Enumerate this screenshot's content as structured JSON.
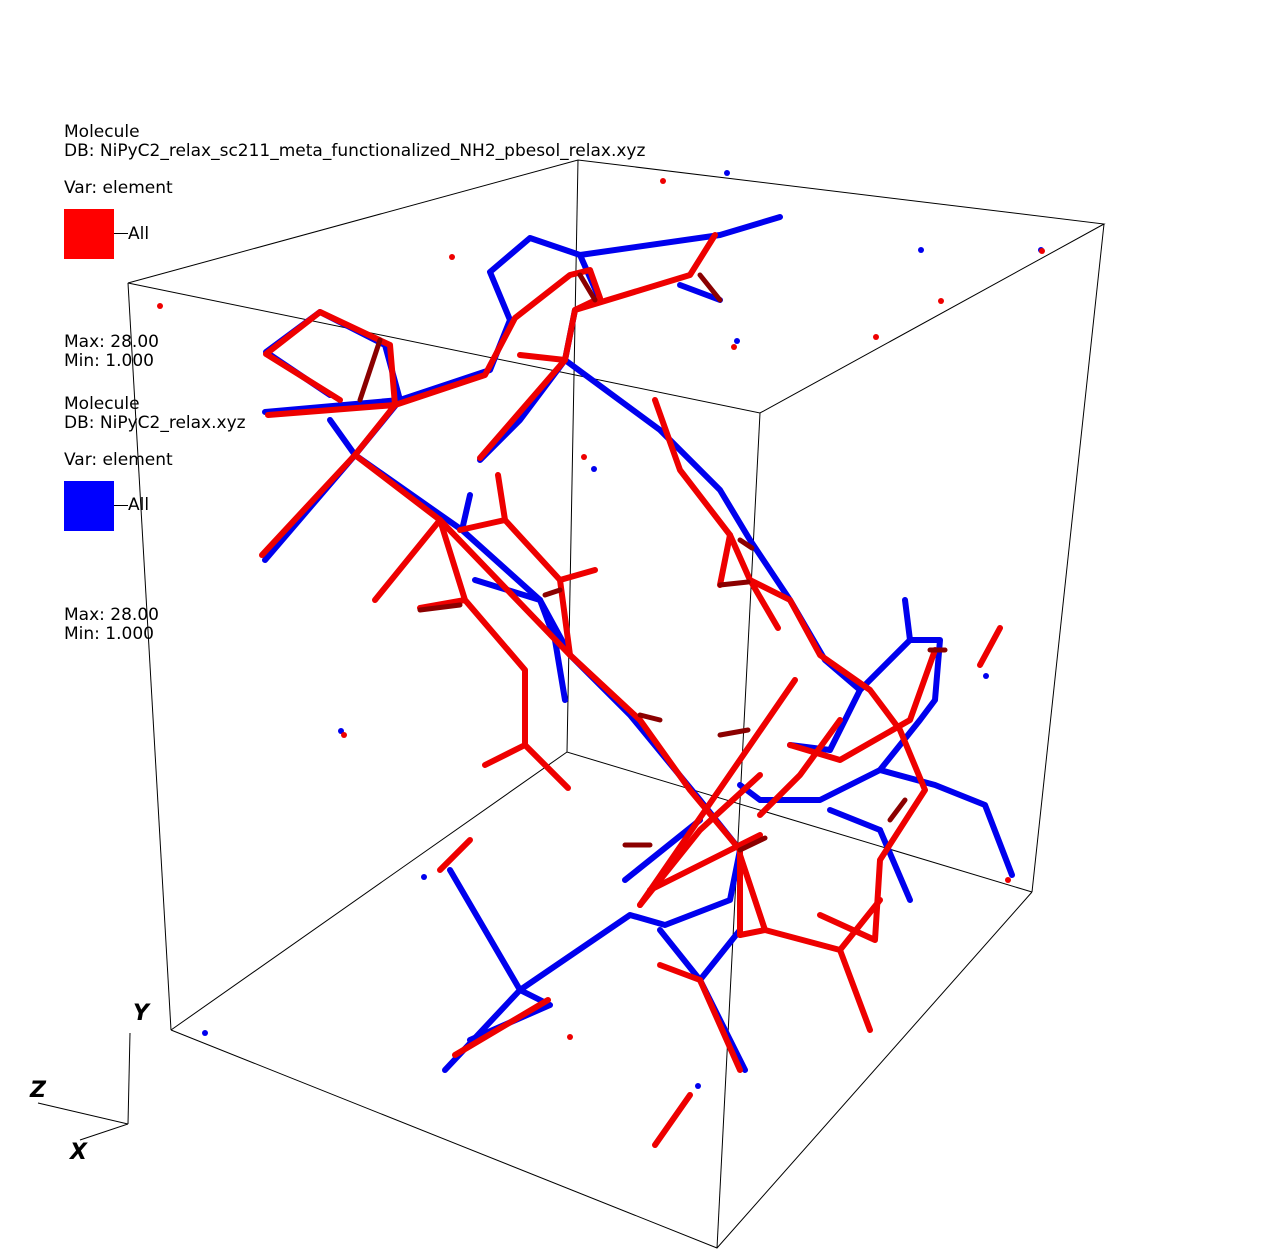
{
  "plots": [
    {
      "type": "Molecule",
      "db": "DB: NiPyC2_relax_sc211_meta_functionalized_NH2_pbesol_relax.xyz",
      "var": "Var: element",
      "legend_label": "All",
      "color": "#ff0000",
      "max": "Max:  28.00",
      "min": "Min:  1.000"
    },
    {
      "type": "Molecule",
      "db": "DB: NiPyC2_relax.xyz",
      "var": "Var: element",
      "legend_label": "All",
      "color": "#0000ff",
      "max": "Max:  28.00",
      "min": "Min:  1.000"
    }
  ],
  "triad": {
    "y": "Y",
    "z": "Z",
    "x": "X"
  }
}
